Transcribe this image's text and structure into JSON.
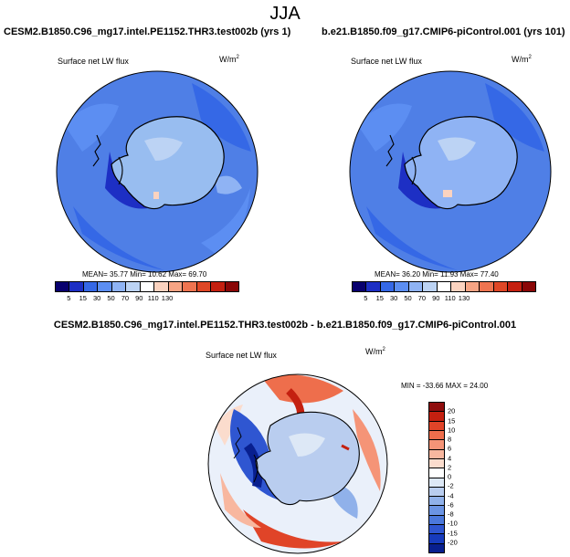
{
  "page_title": "JJA",
  "panels": [
    {
      "title": "CESM2.B1850.C96_mg17.intel.PE1152.THR3.test002b (yrs 1)",
      "variable": "Surface net LW flux",
      "units_base": "W/m",
      "units_exp": "2",
      "stats": "MEAN=  35.77  Min=  10.62  Max=  69.70",
      "mean": 35.77,
      "min": 10.62,
      "max": 69.7,
      "levels": [
        "5",
        "15",
        "30",
        "50",
        "70",
        "90",
        "110",
        "130"
      ]
    },
    {
      "title": "b.e21.B1850.f09_g17.CMIP6-piControl.001 (yrs 101)",
      "variable": "Surface net LW flux",
      "units_base": "W/m",
      "units_exp": "2",
      "stats": "MEAN=  36.20  Min=  11.93  Max=  77.40",
      "mean": 36.2,
      "min": 11.93,
      "max": 77.4,
      "levels": [
        "5",
        "15",
        "30",
        "50",
        "70",
        "90",
        "110",
        "130"
      ]
    }
  ],
  "diff": {
    "title": "CESM2.B1850.C96_mg17.intel.PE1152.THR3.test002b - b.e21.B1850.f09_g17.CMIP6-piControl.001",
    "variable": "Surface net LW flux",
    "units_base": "W/m",
    "units_exp": "2",
    "stats": "MIN = -33.66  MAX =  24.00",
    "min": -33.66,
    "max": 24.0,
    "levels": [
      "20",
      "15",
      "10",
      "8",
      "6",
      "4",
      "2",
      "0",
      "-2",
      "-4",
      "-6",
      "-8",
      "-10",
      "-15",
      "-20"
    ]
  },
  "colors": {
    "abs_scale": [
      "#08006e",
      "#1d2fc4",
      "#3568e6",
      "#5c8ef2",
      "#8fb3f4",
      "#bcd3f4",
      "#ffffff",
      "#fbd3c0",
      "#f6a484",
      "#ee7450",
      "#df4726",
      "#c42010",
      "#8a0707"
    ],
    "diff_scale": [
      "#8f0d0d",
      "#c42010",
      "#e04428",
      "#ee6e4c",
      "#f59477",
      "#f8b79f",
      "#fbdccd",
      "#ffffff",
      "#dde8f6",
      "#b9cdef",
      "#90b1ea",
      "#6b94e4",
      "#4b78dc",
      "#2f56d1",
      "#173bbd",
      "#081f8f"
    ],
    "ocean_abs": "#4f7fe6",
    "land_abs": "#98bdf0"
  }
}
